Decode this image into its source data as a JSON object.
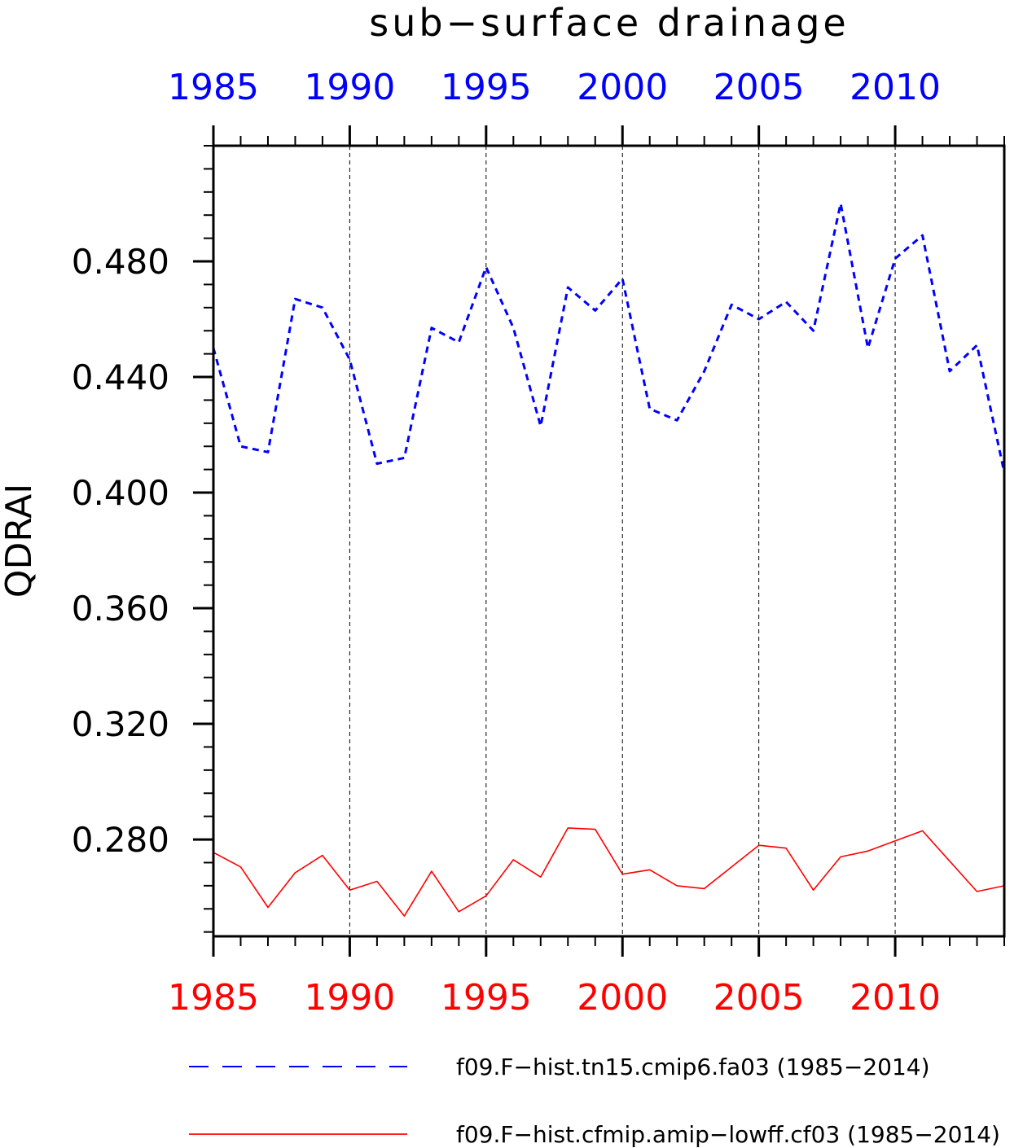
{
  "chart_data": {
    "type": "line",
    "title": "sub−surface drainage",
    "ylabel": "QDRAI",
    "xlabel": "",
    "xlim": [
      1985,
      2014
    ],
    "ylim": [
      0.2465,
      0.52
    ],
    "grid": "vertical-dashed",
    "legend_placement": "bottom",
    "x_ticks": [
      1985,
      1990,
      1995,
      2000,
      2005,
      2010
    ],
    "x_tick_labels": [
      "1985",
      "1990",
      "1995",
      "2000",
      "2005",
      "2010"
    ],
    "y_ticks": [
      0.28,
      0.32,
      0.36,
      0.4,
      0.44,
      0.48
    ],
    "y_tick_labels": [
      "0.280",
      "0.320",
      "0.360",
      "0.400",
      "0.440",
      "0.480"
    ],
    "x": [
      1985,
      1986,
      1987,
      1988,
      1989,
      1990,
      1991,
      1992,
      1993,
      1994,
      1995,
      1996,
      1997,
      1998,
      1999,
      2000,
      2001,
      2002,
      2003,
      2004,
      2005,
      2006,
      2007,
      2008,
      2009,
      2010,
      2011,
      2012,
      2013,
      2014
    ],
    "series": [
      {
        "name": "f09.F−hist.tn15.cmip6.fa03 (1985−2014)",
        "color": "#0000ff",
        "style": "dashed",
        "values": [
          0.45,
          0.416,
          0.414,
          0.467,
          0.464,
          0.446,
          0.41,
          0.412,
          0.457,
          0.452,
          0.478,
          0.457,
          0.423,
          0.471,
          0.463,
          0.474,
          0.429,
          0.425,
          0.442,
          0.465,
          0.46,
          0.466,
          0.456,
          0.5,
          0.45,
          0.481,
          0.489,
          0.442,
          0.451,
          0.407
        ]
      },
      {
        "name": "f09.F−hist.cfmip.amip−lowff.cf03 (1985−2014)",
        "color": "#ff0000",
        "style": "solid",
        "values": [
          0.2755,
          0.2705,
          0.2565,
          0.2685,
          0.2745,
          0.2625,
          0.2655,
          0.2535,
          0.269,
          0.255,
          0.2605,
          0.273,
          0.267,
          0.284,
          0.2835,
          0.268,
          0.2695,
          0.264,
          0.263,
          0.2705,
          0.278,
          0.277,
          0.2625,
          0.274,
          0.276,
          0.2795,
          0.283,
          0.2725,
          0.262,
          0.264
        ]
      }
    ]
  }
}
